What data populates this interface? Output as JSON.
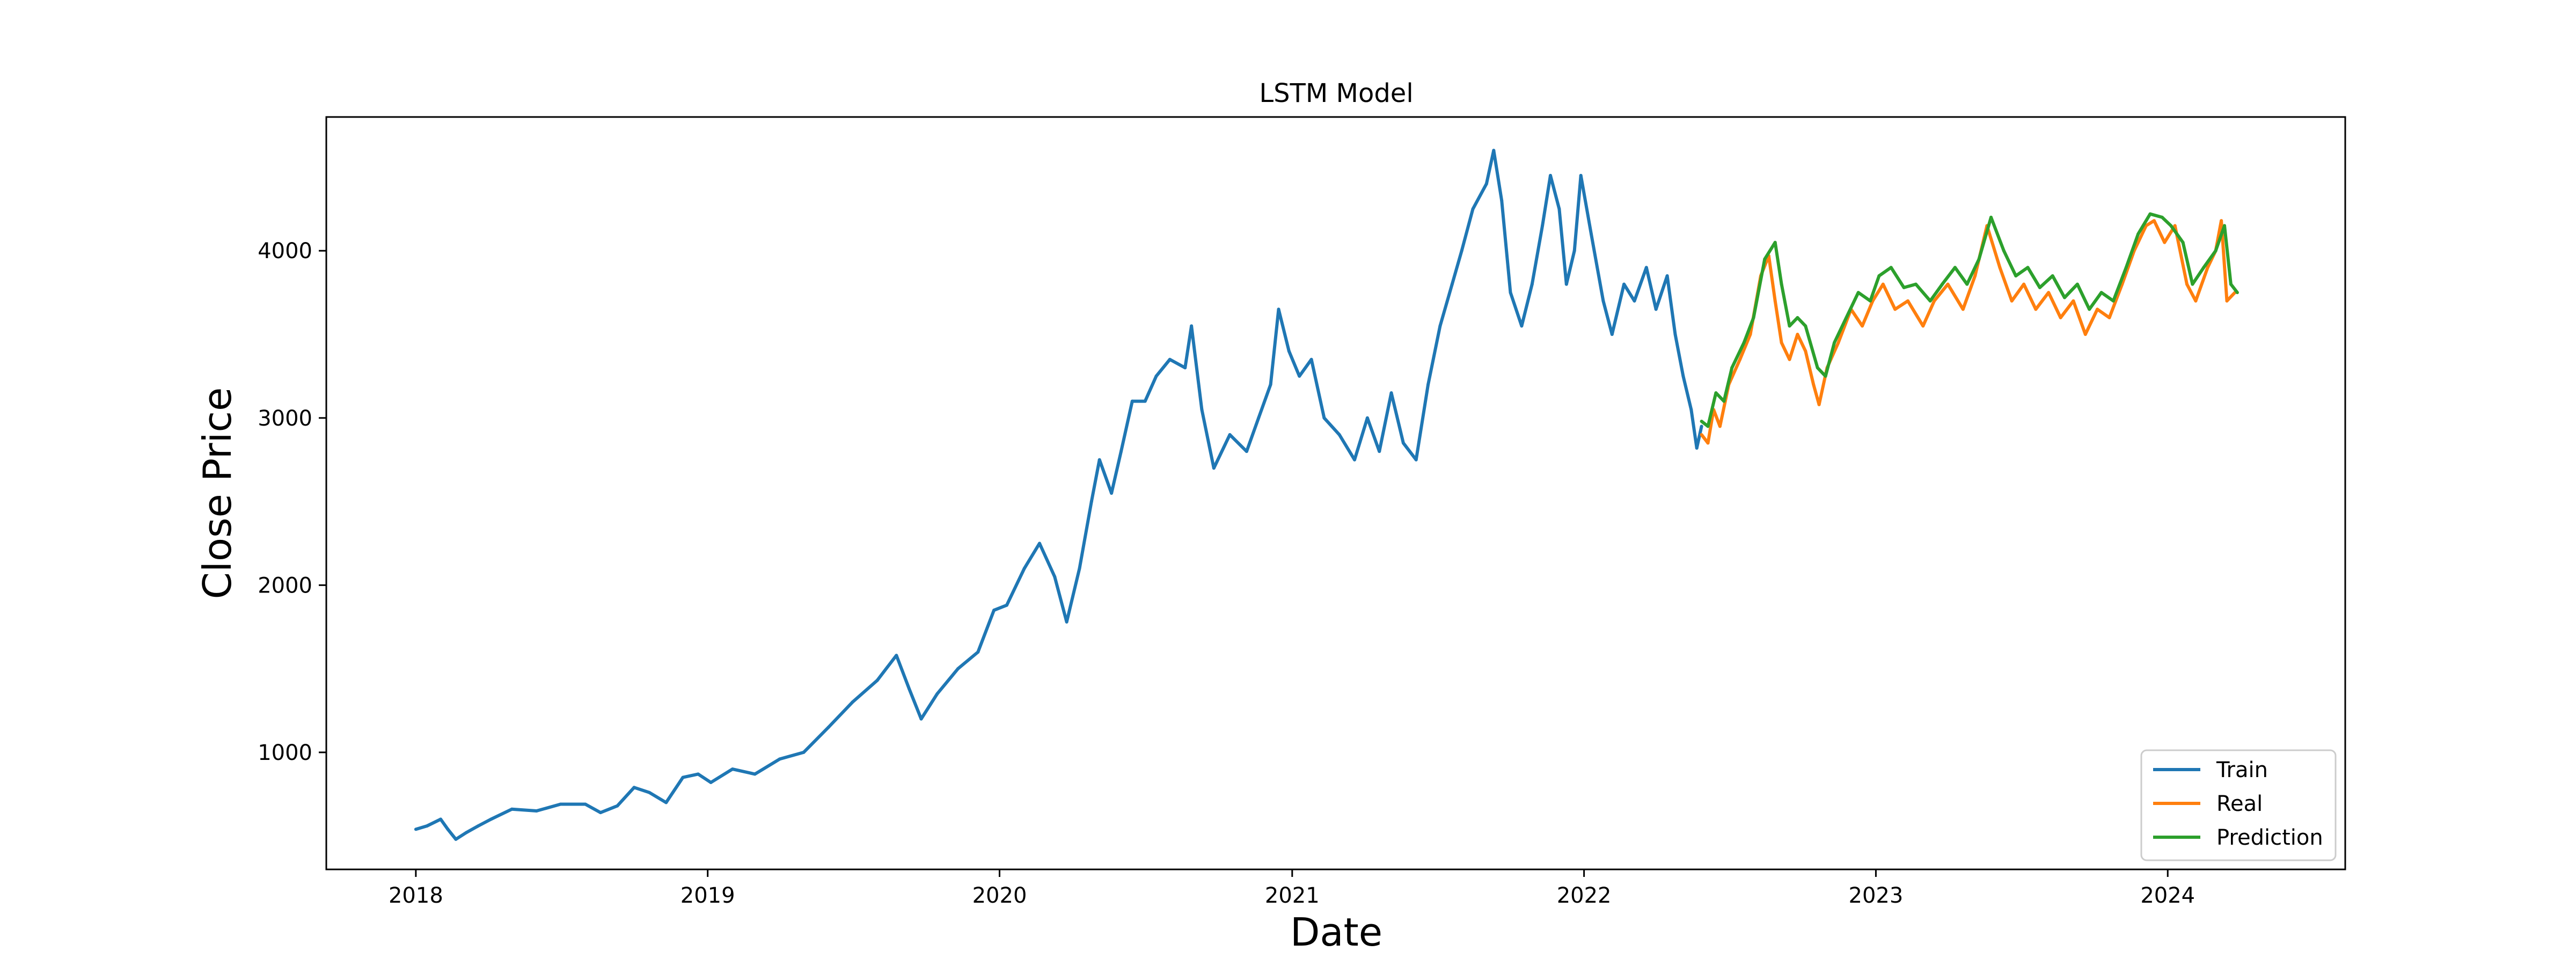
{
  "chart_data": {
    "type": "line",
    "title": "LSTM Model",
    "xlabel": "Date",
    "ylabel": "Close Price",
    "xlim": [
      "2017-09-11",
      "2024-08-10"
    ],
    "ylim": [
      300,
      4800
    ],
    "x_ticks": [
      {
        "date": "2018-01-01",
        "label": "2018"
      },
      {
        "date": "2019-01-01",
        "label": "2019"
      },
      {
        "date": "2020-01-01",
        "label": "2020"
      },
      {
        "date": "2021-01-01",
        "label": "2021"
      },
      {
        "date": "2022-01-01",
        "label": "2022"
      },
      {
        "date": "2023-01-01",
        "label": "2023"
      },
      {
        "date": "2024-01-01",
        "label": "2024"
      }
    ],
    "y_ticks": [
      1000,
      2000,
      3000,
      4000
    ],
    "grid": false,
    "legend_position": "bottom-right",
    "series": [
      {
        "name": "Train",
        "color": "#1f77b4",
        "points": [
          [
            "2018-01-01",
            540
          ],
          [
            "2018-01-15",
            560
          ],
          [
            "2018-02-01",
            600
          ],
          [
            "2018-02-10",
            540
          ],
          [
            "2018-02-20",
            480
          ],
          [
            "2018-03-05",
            520
          ],
          [
            "2018-03-20",
            560
          ],
          [
            "2018-04-05",
            600
          ],
          [
            "2018-05-01",
            660
          ],
          [
            "2018-06-01",
            650
          ],
          [
            "2018-07-01",
            690
          ],
          [
            "2018-08-01",
            690
          ],
          [
            "2018-08-20",
            640
          ],
          [
            "2018-09-10",
            680
          ],
          [
            "2018-10-01",
            790
          ],
          [
            "2018-10-20",
            760
          ],
          [
            "2018-11-10",
            700
          ],
          [
            "2018-12-01",
            850
          ],
          [
            "2018-12-20",
            870
          ],
          [
            "2019-01-05",
            820
          ],
          [
            "2019-02-01",
            900
          ],
          [
            "2019-03-01",
            870
          ],
          [
            "2019-04-01",
            960
          ],
          [
            "2019-05-01",
            1000
          ],
          [
            "2019-06-01",
            1150
          ],
          [
            "2019-07-01",
            1300
          ],
          [
            "2019-08-01",
            1430
          ],
          [
            "2019-08-25",
            1580
          ],
          [
            "2019-09-10",
            1380
          ],
          [
            "2019-09-25",
            1200
          ],
          [
            "2019-10-15",
            1350
          ],
          [
            "2019-11-10",
            1500
          ],
          [
            "2019-12-05",
            1600
          ],
          [
            "2019-12-25",
            1850
          ],
          [
            "2020-01-10",
            1880
          ],
          [
            "2020-02-01",
            2100
          ],
          [
            "2020-02-20",
            2250
          ],
          [
            "2020-03-10",
            2050
          ],
          [
            "2020-03-25",
            1780
          ],
          [
            "2020-04-10",
            2100
          ],
          [
            "2020-04-25",
            2500
          ],
          [
            "2020-05-05",
            2750
          ],
          [
            "2020-05-20",
            2550
          ],
          [
            "2020-06-01",
            2800
          ],
          [
            "2020-06-15",
            3100
          ],
          [
            "2020-07-01",
            3100
          ],
          [
            "2020-07-15",
            3250
          ],
          [
            "2020-08-01",
            3350
          ],
          [
            "2020-08-20",
            3300
          ],
          [
            "2020-08-28",
            3550
          ],
          [
            "2020-09-10",
            3050
          ],
          [
            "2020-09-25",
            2700
          ],
          [
            "2020-10-15",
            2900
          ],
          [
            "2020-11-05",
            2800
          ],
          [
            "2020-11-20",
            3000
          ],
          [
            "2020-12-05",
            3200
          ],
          [
            "2020-12-15",
            3650
          ],
          [
            "2020-12-28",
            3400
          ],
          [
            "2021-01-10",
            3250
          ],
          [
            "2021-01-25",
            3350
          ],
          [
            "2021-02-10",
            3000
          ],
          [
            "2021-03-01",
            2900
          ],
          [
            "2021-03-20",
            2750
          ],
          [
            "2021-04-05",
            3000
          ],
          [
            "2021-04-20",
            2800
          ],
          [
            "2021-05-05",
            3150
          ],
          [
            "2021-05-20",
            2850
          ],
          [
            "2021-06-05",
            2750
          ],
          [
            "2021-06-20",
            3200
          ],
          [
            "2021-07-05",
            3550
          ],
          [
            "2021-07-20",
            3800
          ],
          [
            "2021-08-01",
            4000
          ],
          [
            "2021-08-15",
            4250
          ],
          [
            "2021-09-01",
            4400
          ],
          [
            "2021-09-10",
            4600
          ],
          [
            "2021-09-20",
            4300
          ],
          [
            "2021-10-01",
            3750
          ],
          [
            "2021-10-15",
            3550
          ],
          [
            "2021-10-28",
            3800
          ],
          [
            "2021-11-10",
            4150
          ],
          [
            "2021-11-20",
            4450
          ],
          [
            "2021-12-01",
            4250
          ],
          [
            "2021-12-10",
            3800
          ],
          [
            "2021-12-20",
            4000
          ],
          [
            "2021-12-28",
            4450
          ],
          [
            "2022-01-10",
            4100
          ],
          [
            "2022-01-25",
            3700
          ],
          [
            "2022-02-05",
            3500
          ],
          [
            "2022-02-20",
            3800
          ],
          [
            "2022-03-05",
            3700
          ],
          [
            "2022-03-20",
            3900
          ],
          [
            "2022-04-01",
            3650
          ],
          [
            "2022-04-15",
            3850
          ],
          [
            "2022-04-25",
            3500
          ],
          [
            "2022-05-05",
            3250
          ],
          [
            "2022-05-15",
            3050
          ],
          [
            "2022-05-22",
            2820
          ],
          [
            "2022-05-28",
            2950
          ]
        ]
      },
      {
        "name": "Real",
        "color": "#ff7f0e",
        "points": [
          [
            "2022-05-28",
            2900
          ],
          [
            "2022-06-05",
            2850
          ],
          [
            "2022-06-12",
            3050
          ],
          [
            "2022-06-20",
            2950
          ],
          [
            "2022-07-01",
            3200
          ],
          [
            "2022-07-15",
            3350
          ],
          [
            "2022-07-28",
            3500
          ],
          [
            "2022-08-10",
            3850
          ],
          [
            "2022-08-20",
            3970
          ],
          [
            "2022-08-28",
            3700
          ],
          [
            "2022-09-05",
            3450
          ],
          [
            "2022-09-15",
            3350
          ],
          [
            "2022-09-25",
            3500
          ],
          [
            "2022-10-05",
            3400
          ],
          [
            "2022-10-15",
            3200
          ],
          [
            "2022-10-22",
            3080
          ],
          [
            "2022-11-01",
            3300
          ],
          [
            "2022-11-15",
            3450
          ],
          [
            "2022-12-01",
            3650
          ],
          [
            "2022-12-15",
            3550
          ],
          [
            "2022-12-28",
            3700
          ],
          [
            "2023-01-10",
            3800
          ],
          [
            "2023-01-25",
            3650
          ],
          [
            "2023-02-10",
            3700
          ],
          [
            "2023-03-01",
            3550
          ],
          [
            "2023-03-15",
            3700
          ],
          [
            "2023-04-01",
            3800
          ],
          [
            "2023-04-20",
            3650
          ],
          [
            "2023-05-05",
            3850
          ],
          [
            "2023-05-20",
            4150
          ],
          [
            "2023-06-05",
            3900
          ],
          [
            "2023-06-20",
            3700
          ],
          [
            "2023-07-05",
            3800
          ],
          [
            "2023-07-20",
            3650
          ],
          [
            "2023-08-05",
            3750
          ],
          [
            "2023-08-20",
            3600
          ],
          [
            "2023-09-05",
            3700
          ],
          [
            "2023-09-20",
            3500
          ],
          [
            "2023-10-05",
            3650
          ],
          [
            "2023-10-20",
            3600
          ],
          [
            "2023-11-05",
            3800
          ],
          [
            "2023-11-20",
            4000
          ],
          [
            "2023-12-05",
            4150
          ],
          [
            "2023-12-15",
            4180
          ],
          [
            "2023-12-28",
            4050
          ],
          [
            "2024-01-10",
            4150
          ],
          [
            "2024-01-25",
            3800
          ],
          [
            "2024-02-05",
            3700
          ],
          [
            "2024-02-20",
            3900
          ],
          [
            "2024-03-01",
            4000
          ],
          [
            "2024-03-08",
            4180
          ],
          [
            "2024-03-15",
            3700
          ],
          [
            "2024-03-25",
            3750
          ]
        ]
      },
      {
        "name": "Prediction",
        "color": "#2ca02c",
        "points": [
          [
            "2022-05-28",
            2980
          ],
          [
            "2022-06-05",
            2950
          ],
          [
            "2022-06-15",
            3150
          ],
          [
            "2022-06-25",
            3100
          ],
          [
            "2022-07-05",
            3300
          ],
          [
            "2022-07-20",
            3450
          ],
          [
            "2022-08-01",
            3600
          ],
          [
            "2022-08-15",
            3950
          ],
          [
            "2022-08-28",
            4050
          ],
          [
            "2022-09-05",
            3800
          ],
          [
            "2022-09-15",
            3550
          ],
          [
            "2022-09-25",
            3600
          ],
          [
            "2022-10-05",
            3550
          ],
          [
            "2022-10-20",
            3300
          ],
          [
            "2022-10-30",
            3250
          ],
          [
            "2022-11-10",
            3450
          ],
          [
            "2022-11-25",
            3600
          ],
          [
            "2022-12-10",
            3750
          ],
          [
            "2022-12-25",
            3700
          ],
          [
            "2023-01-05",
            3850
          ],
          [
            "2023-01-20",
            3900
          ],
          [
            "2023-02-05",
            3780
          ],
          [
            "2023-02-20",
            3800
          ],
          [
            "2023-03-10",
            3700
          ],
          [
            "2023-03-25",
            3800
          ],
          [
            "2023-04-10",
            3900
          ],
          [
            "2023-04-25",
            3800
          ],
          [
            "2023-05-10",
            3950
          ],
          [
            "2023-05-25",
            4200
          ],
          [
            "2023-06-10",
            4000
          ],
          [
            "2023-06-25",
            3850
          ],
          [
            "2023-07-10",
            3900
          ],
          [
            "2023-07-25",
            3780
          ],
          [
            "2023-08-10",
            3850
          ],
          [
            "2023-08-25",
            3720
          ],
          [
            "2023-09-10",
            3800
          ],
          [
            "2023-09-25",
            3650
          ],
          [
            "2023-10-10",
            3750
          ],
          [
            "2023-10-25",
            3700
          ],
          [
            "2023-11-10",
            3900
          ],
          [
            "2023-11-25",
            4100
          ],
          [
            "2023-12-10",
            4220
          ],
          [
            "2023-12-25",
            4200
          ],
          [
            "2024-01-05",
            4150
          ],
          [
            "2024-01-20",
            4050
          ],
          [
            "2024-02-01",
            3800
          ],
          [
            "2024-02-15",
            3900
          ],
          [
            "2024-03-01",
            4000
          ],
          [
            "2024-03-12",
            4150
          ],
          [
            "2024-03-20",
            3800
          ],
          [
            "2024-03-28",
            3750
          ]
        ]
      }
    ]
  }
}
